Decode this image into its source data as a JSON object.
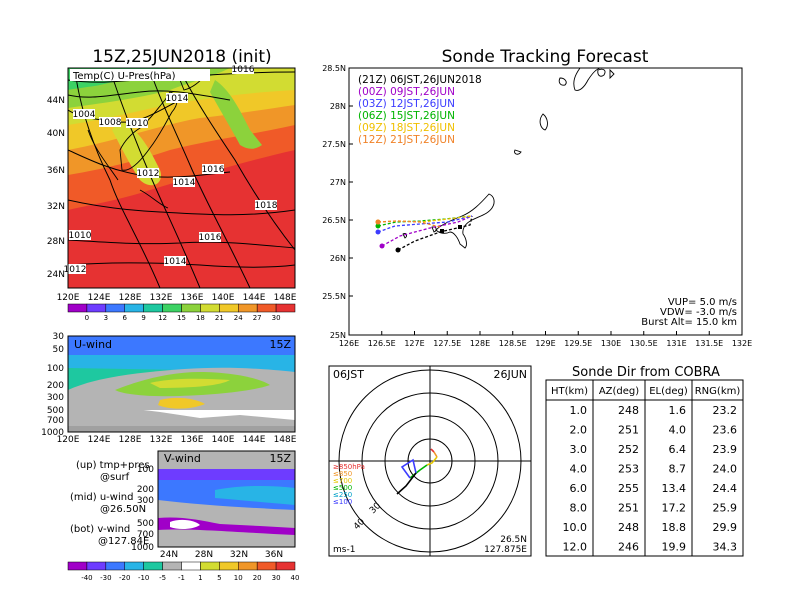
{
  "left": {
    "title": "15Z,25JUN2018 (init)",
    "map_label": "Temp(C) U-Pres(hPa)",
    "isobars": [
      "1016",
      "1014",
      "1004",
      "1008",
      "1010",
      "1012",
      "1014",
      "1016",
      "1018",
      "1010",
      "1016",
      "1014",
      "1012"
    ],
    "lon_ticks": [
      "120E",
      "124E",
      "128E",
      "132E",
      "136E",
      "140E",
      "144E",
      "148E"
    ],
    "lat_ticks": [
      "44N",
      "40N",
      "36N",
      "32N",
      "28N",
      "24N"
    ],
    "temp_cbar": [
      "0",
      "3",
      "6",
      "9",
      "12",
      "15",
      "18",
      "21",
      "24",
      "27",
      "30"
    ],
    "temp_colors": [
      "#a000c8",
      "#6e3cff",
      "#3c78ff",
      "#28b4e6",
      "#1ec8a0",
      "#3cd264",
      "#8cd23c",
      "#d2dc32",
      "#f0c828",
      "#f09628",
      "#f05a28",
      "#e63232"
    ],
    "uwind": {
      "label": "U-wind",
      "time": "15Z",
      "levels": [
        "30",
        "50",
        "100",
        "200",
        "300",
        "500",
        "700",
        "1000"
      ],
      "lon_ticks": [
        "120E",
        "124E",
        "128E",
        "132E",
        "136E",
        "140E",
        "144E",
        "148E"
      ]
    },
    "vwind": {
      "label": "V-wind",
      "time": "15Z",
      "levels": [
        "100",
        "200",
        "300",
        "500",
        "700",
        "1000"
      ],
      "lat_ticks": [
        "24N",
        "28N",
        "32N",
        "36N"
      ]
    },
    "legend": [
      "(up) tmp+pres",
      "@surf",
      "(mid) u-wind",
      "@26.50N",
      "(bot) v-wind",
      "@127.84E"
    ],
    "wind_cbar": [
      "-40",
      "-30",
      "-20",
      "-10",
      "-5",
      "-1",
      "1",
      "5",
      "10",
      "20",
      "30",
      "40"
    ],
    "wind_colors": [
      "#a000c8",
      "#6e3cff",
      "#3c78ff",
      "#28b4e6",
      "#1ec8a0",
      "#b4b4b4",
      "#ffffff",
      "#d2dc32",
      "#f0c828",
      "#f09628",
      "#f05a28",
      "#e63232"
    ]
  },
  "track": {
    "title": "Sonde Tracking Forecast",
    "lat_ticks": [
      "28.5N",
      "28N",
      "27.5N",
      "27N",
      "26.5N",
      "26N",
      "25.5N",
      "25N"
    ],
    "lon_ticks": [
      "126E",
      "126.5E",
      "127E",
      "127.5E",
      "128E",
      "128.5E",
      "129E",
      "129.5E",
      "130E",
      "130.5E",
      "131E",
      "131.5E",
      "132E"
    ],
    "legend": [
      {
        "text": "(21Z)  06JST,26JUN2018",
        "color": "#000000"
      },
      {
        "text": "(00Z)  09JST,26JUN",
        "color": "#a000c8"
      },
      {
        "text": "(03Z)  12JST,26JUN",
        "color": "#3c3cff"
      },
      {
        "text": "(06Z)  15JST,26JUN",
        "color": "#00b400"
      },
      {
        "text": "(09Z)  18JST,26JUN",
        "color": "#f0c000"
      },
      {
        "text": "(12Z)  21JST,26JUN",
        "color": "#f08228"
      }
    ],
    "params": [
      "VUP=  5.0  m/s",
      "VDW=  -3.0  m/s",
      "Burst Alt=  15.0  km"
    ]
  },
  "hodo": {
    "time": "06JST",
    "date": "26JUN",
    "unit": "ms-1",
    "loc": [
      "26.5N",
      "127.875E"
    ],
    "ring_labels": [
      "40",
      "30"
    ],
    "levels": [
      {
        "text": "≥850hPa",
        "color": "#e63232"
      },
      {
        "text": "≤850",
        "color": "#f09628"
      },
      {
        "text": "≤700",
        "color": "#e6c800"
      },
      {
        "text": "≤500",
        "color": "#00b400"
      },
      {
        "text": "≤250",
        "color": "#00a0c8"
      },
      {
        "text": "≤100",
        "color": "#3c3cff"
      }
    ]
  },
  "table": {
    "title": "Sonde Dir from COBRA",
    "headers": [
      "HT(km)",
      "AZ(deg)",
      "EL(deg)",
      "RNG(km)"
    ],
    "rows": [
      [
        "1.0",
        "248",
        "1.6",
        "23.2"
      ],
      [
        "2.0",
        "251",
        "4.0",
        "23.6"
      ],
      [
        "3.0",
        "252",
        "6.4",
        "23.9"
      ],
      [
        "4.0",
        "253",
        "8.7",
        "24.0"
      ],
      [
        "6.0",
        "255",
        "13.4",
        "24.4"
      ],
      [
        "8.0",
        "251",
        "17.2",
        "25.9"
      ],
      [
        "10.0",
        "248",
        "18.8",
        "29.9"
      ],
      [
        "12.0",
        "246",
        "19.9",
        "34.3"
      ]
    ]
  }
}
